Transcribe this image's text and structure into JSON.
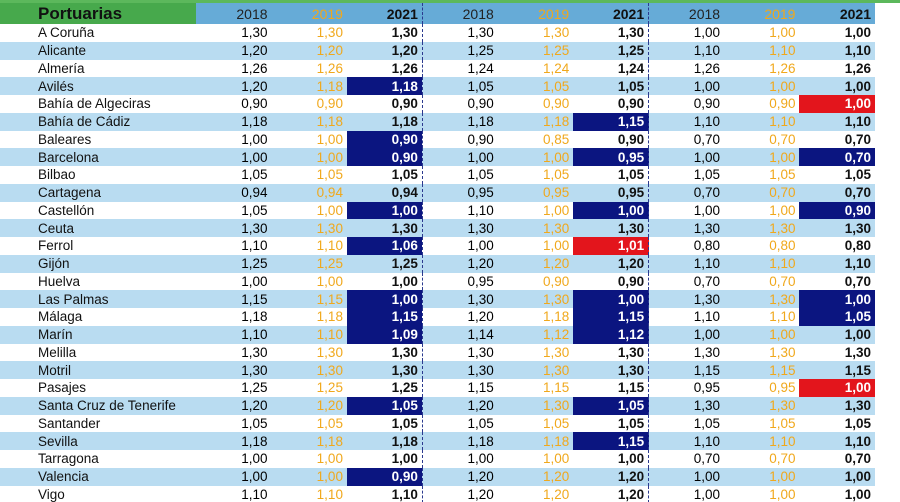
{
  "header": {
    "port_label": "Portuarias",
    "years": [
      "2018",
      "2019",
      "2021",
      "2018",
      "2019",
      "2021",
      "2018",
      "2019",
      "2021"
    ]
  },
  "colors": {
    "blue_highlight": "#0b1580",
    "red_highlight": "#e3151c",
    "year_2019": "#f0a81c",
    "header_green": "#47a94c",
    "header_blue": "#66abd7",
    "row_stripe": "#b9dcf1"
  },
  "rows": [
    {
      "name": "A Coruña",
      "values": [
        "1,30",
        "1,30",
        "1,30",
        "1,30",
        "1,30",
        "1,30",
        "1,00",
        "1,00",
        "1,00"
      ],
      "hl": [
        "",
        "",
        ""
      ]
    },
    {
      "name": "Alicante",
      "values": [
        "1,20",
        "1,20",
        "1,20",
        "1,25",
        "1,25",
        "1,25",
        "1,10",
        "1,10",
        "1,10"
      ],
      "hl": [
        "",
        "",
        ""
      ]
    },
    {
      "name": "Almería",
      "values": [
        "1,26",
        "1,26",
        "1,26",
        "1,24",
        "1,24",
        "1,24",
        "1,26",
        "1,26",
        "1,26"
      ],
      "hl": [
        "",
        "",
        ""
      ]
    },
    {
      "name": "Avilés",
      "values": [
        "1,20",
        "1,18",
        "1,18",
        "1,05",
        "1,05",
        "1,05",
        "1,00",
        "1,00",
        "1,00"
      ],
      "hl": [
        "blue",
        "",
        ""
      ]
    },
    {
      "name": "Bahía de Algeciras",
      "values": [
        "0,90",
        "0,90",
        "0,90",
        "0,90",
        "0,90",
        "0,90",
        "0,90",
        "0,90",
        "1,00"
      ],
      "hl": [
        "",
        "",
        "red"
      ]
    },
    {
      "name": "Bahía de Cádiz",
      "values": [
        "1,18",
        "1,18",
        "1,18",
        "1,18",
        "1,18",
        "1,15",
        "1,10",
        "1,10",
        "1,10"
      ],
      "hl": [
        "",
        "blue",
        ""
      ]
    },
    {
      "name": "Baleares",
      "values": [
        "1,00",
        "1,00",
        "0,90",
        "0,90",
        "0,85",
        "0,90",
        "0,70",
        "0,70",
        "0,70"
      ],
      "hl": [
        "blue",
        "",
        ""
      ]
    },
    {
      "name": "Barcelona",
      "values": [
        "1,00",
        "1,00",
        "0,90",
        "1,00",
        "1,00",
        "0,95",
        "1,00",
        "1,00",
        "0,70"
      ],
      "hl": [
        "blue",
        "blue",
        "blue"
      ]
    },
    {
      "name": "Bilbao",
      "values": [
        "1,05",
        "1,05",
        "1,05",
        "1,05",
        "1,05",
        "1,05",
        "1,05",
        "1,05",
        "1,05"
      ],
      "hl": [
        "",
        "",
        ""
      ]
    },
    {
      "name": "Cartagena",
      "values": [
        "0,94",
        "0,94",
        "0,94",
        "0,95",
        "0,95",
        "0,95",
        "0,70",
        "0,70",
        "0,70"
      ],
      "hl": [
        "",
        "",
        ""
      ]
    },
    {
      "name": "Castellón",
      "values": [
        "1,05",
        "1,00",
        "1,00",
        "1,10",
        "1,00",
        "1,00",
        "1,00",
        "1,00",
        "0,90"
      ],
      "hl": [
        "blue",
        "blue",
        "blue"
      ]
    },
    {
      "name": "Ceuta",
      "values": [
        "1,30",
        "1,30",
        "1,30",
        "1,30",
        "1,30",
        "1,30",
        "1,30",
        "1,30",
        "1,30"
      ],
      "hl": [
        "",
        "",
        ""
      ]
    },
    {
      "name": "Ferrol",
      "values": [
        "1,10",
        "1,10",
        "1,06",
        "1,00",
        "1,00",
        "1,01",
        "0,80",
        "0,80",
        "0,80"
      ],
      "hl": [
        "blue",
        "red",
        ""
      ]
    },
    {
      "name": "Gijón",
      "values": [
        "1,25",
        "1,25",
        "1,25",
        "1,20",
        "1,20",
        "1,20",
        "1,10",
        "1,10",
        "1,10"
      ],
      "hl": [
        "",
        "",
        ""
      ]
    },
    {
      "name": "Huelva",
      "values": [
        "1,00",
        "1,00",
        "1,00",
        "0,95",
        "0,90",
        "0,90",
        "0,70",
        "0,70",
        "0,70"
      ],
      "hl": [
        "",
        "",
        ""
      ]
    },
    {
      "name": "Las Palmas",
      "values": [
        "1,15",
        "1,15",
        "1,00",
        "1,30",
        "1,30",
        "1,00",
        "1,30",
        "1,30",
        "1,00"
      ],
      "hl": [
        "blue",
        "blue",
        "blue"
      ]
    },
    {
      "name": "Málaga",
      "values": [
        "1,18",
        "1,18",
        "1,15",
        "1,20",
        "1,18",
        "1,15",
        "1,10",
        "1,10",
        "1,05"
      ],
      "hl": [
        "blue",
        "blue",
        "blue"
      ]
    },
    {
      "name": "Marín",
      "values": [
        "1,10",
        "1,10",
        "1,09",
        "1,14",
        "1,12",
        "1,12",
        "1,00",
        "1,00",
        "1,00"
      ],
      "hl": [
        "blue",
        "blue",
        ""
      ]
    },
    {
      "name": "Melilla",
      "values": [
        "1,30",
        "1,30",
        "1,30",
        "1,30",
        "1,30",
        "1,30",
        "1,30",
        "1,30",
        "1,30"
      ],
      "hl": [
        "",
        "",
        ""
      ]
    },
    {
      "name": "Motril",
      "values": [
        "1,30",
        "1,30",
        "1,30",
        "1,30",
        "1,30",
        "1,30",
        "1,15",
        "1,15",
        "1,15"
      ],
      "hl": [
        "",
        "",
        ""
      ]
    },
    {
      "name": "Pasajes",
      "values": [
        "1,25",
        "1,25",
        "1,25",
        "1,15",
        "1,15",
        "1,15",
        "0,95",
        "0,95",
        "1,00"
      ],
      "hl": [
        "",
        "",
        "red"
      ]
    },
    {
      "name": "Santa Cruz de Tenerife",
      "values": [
        "1,20",
        "1,20",
        "1,05",
        "1,20",
        "1,30",
        "1,05",
        "1,30",
        "1,30",
        "1,30"
      ],
      "hl": [
        "blue",
        "blue",
        ""
      ]
    },
    {
      "name": "Santander",
      "values": [
        "1,05",
        "1,05",
        "1,05",
        "1,05",
        "1,05",
        "1,05",
        "1,05",
        "1,05",
        "1,05"
      ],
      "hl": [
        "",
        "",
        ""
      ]
    },
    {
      "name": "Sevilla",
      "values": [
        "1,18",
        "1,18",
        "1,18",
        "1,18",
        "1,18",
        "1,15",
        "1,10",
        "1,10",
        "1,10"
      ],
      "hl": [
        "",
        "blue",
        ""
      ]
    },
    {
      "name": "Tarragona",
      "values": [
        "1,00",
        "1,00",
        "1,00",
        "1,00",
        "1,00",
        "1,00",
        "0,70",
        "0,70",
        "0,70"
      ],
      "hl": [
        "",
        "",
        ""
      ]
    },
    {
      "name": "Valencia",
      "values": [
        "1,00",
        "1,00",
        "0,90",
        "1,20",
        "1,20",
        "1,20",
        "1,00",
        "1,00",
        "1,00"
      ],
      "hl": [
        "blue",
        "",
        ""
      ]
    },
    {
      "name": "Vigo",
      "values": [
        "1,10",
        "1,10",
        "1,10",
        "1,20",
        "1,20",
        "1,20",
        "1,00",
        "1,00",
        "1,00"
      ],
      "hl": [
        "",
        "",
        ""
      ]
    }
  ]
}
